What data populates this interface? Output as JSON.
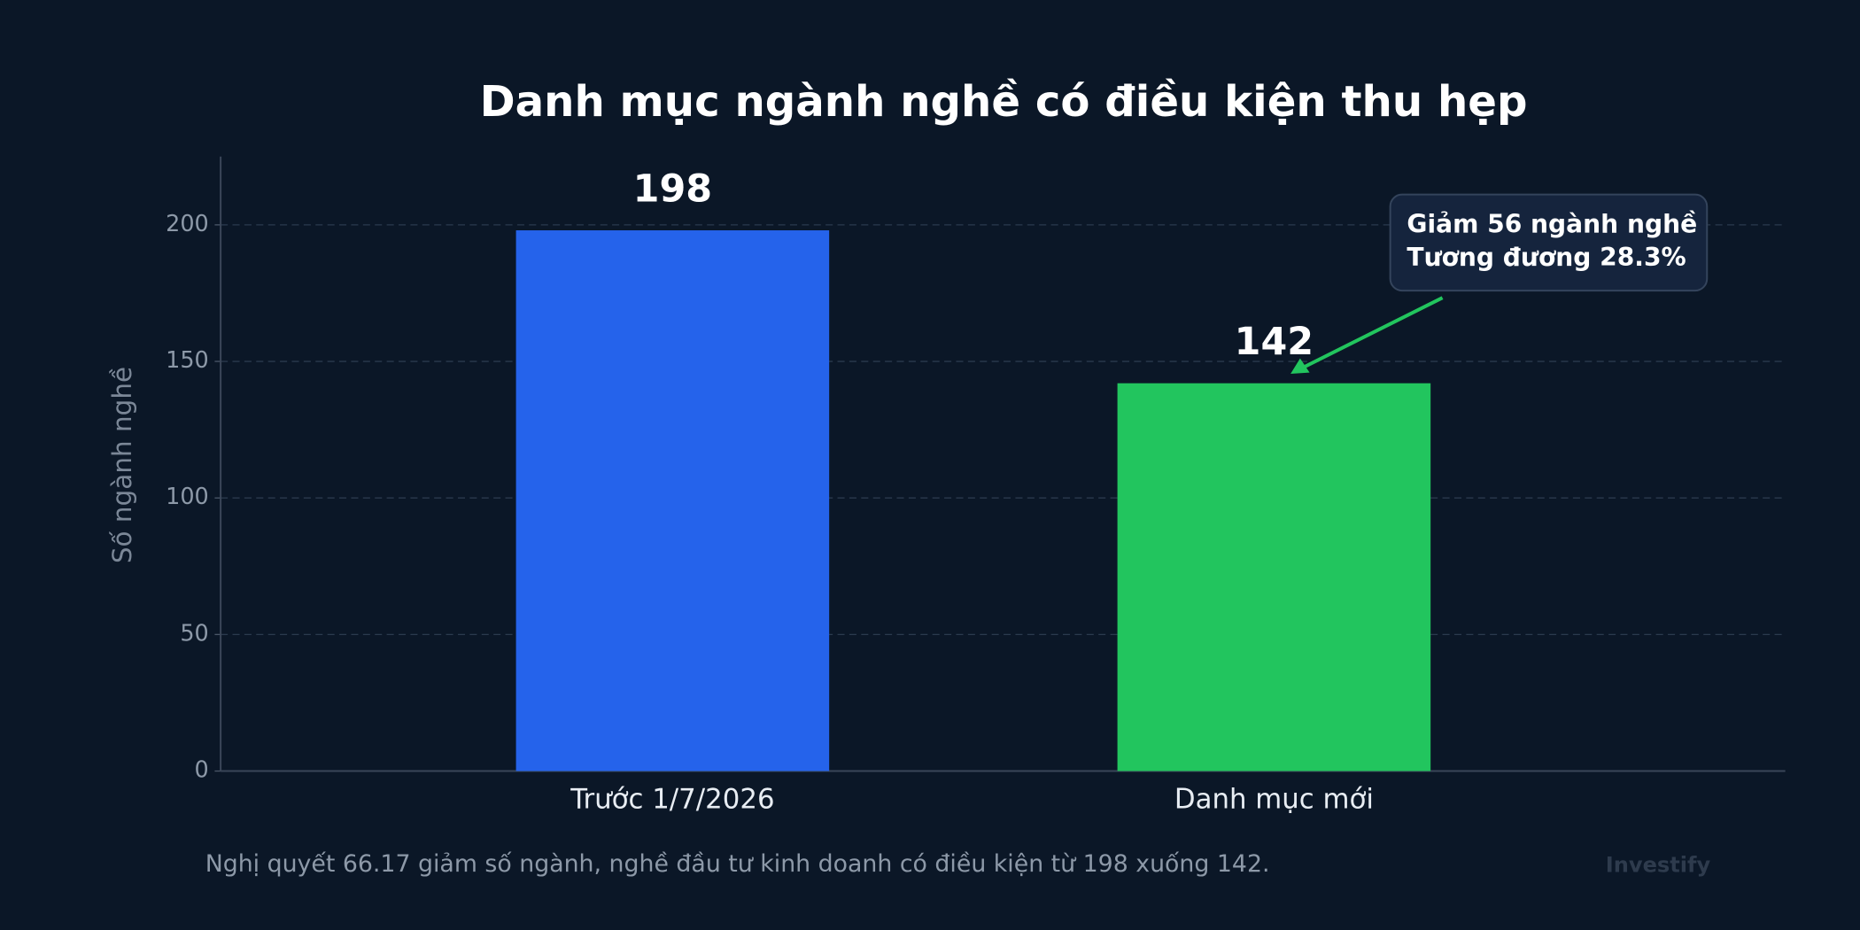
{
  "chart_data": {
    "type": "bar",
    "title": "Danh mục ngành nghề có điều kiện thu hẹp",
    "y_label": "Số ngành nghề",
    "categories": [
      "Trước 1/7/2026",
      "Danh mục mới"
    ],
    "values": [
      198,
      142
    ],
    "colors": [
      "#2563eb",
      "#22c55e"
    ],
    "ylim": [
      0,
      225
    ],
    "yticks": [
      0,
      50,
      100,
      150,
      200
    ],
    "grid": true,
    "annotation": [
      "Giảm 56 ngành nghề",
      "Tương đương 28.3%"
    ],
    "note": "Nghị quyết 66.17 giảm số ngành, nghề đầu tư kinh doanh có điều kiện từ 198 xuống 142.",
    "watermark": "Investify"
  }
}
